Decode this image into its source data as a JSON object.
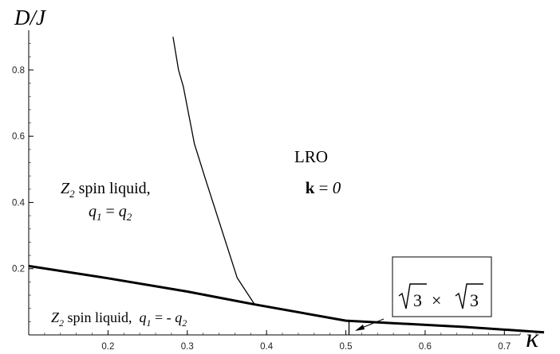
{
  "chart_data": {
    "type": "line",
    "title": "",
    "xlabel": "κ",
    "ylabel": "D/J",
    "xlim": [
      0.1,
      0.75
    ],
    "ylim": [
      0,
      0.92
    ],
    "x_ticks": [
      {
        "value": 0.2,
        "label": "0.2"
      },
      {
        "value": 0.3,
        "label": "0.3"
      },
      {
        "value": 0.4,
        "label": "0.4"
      },
      {
        "value": 0.5,
        "label": "0.5"
      },
      {
        "value": 0.6,
        "label": "0.6"
      },
      {
        "value": 0.7,
        "label": "0.7"
      }
    ],
    "y_ticks": [
      {
        "value": 0.2,
        "label": "0.2"
      },
      {
        "value": 0.4,
        "label": "0.4"
      },
      {
        "value": 0.6,
        "label": "0.6"
      },
      {
        "value": 0.8,
        "label": "0.8"
      }
    ],
    "x_minor_step": 0.02,
    "y_minor_step": 0.04,
    "grid": false,
    "series": [
      {
        "style": "thick",
        "points": [
          [
            0.1,
            0.208
          ],
          [
            0.2,
            0.171
          ],
          [
            0.3,
            0.131
          ],
          [
            0.385,
            0.092
          ],
          [
            0.5,
            0.043
          ],
          [
            0.65,
            0.024
          ],
          [
            0.75,
            0.008
          ]
        ]
      },
      {
        "style": "thin",
        "points": [
          [
            0.282,
            0.9
          ],
          [
            0.289,
            0.8
          ],
          [
            0.295,
            0.75
          ],
          [
            0.309,
            0.577
          ],
          [
            0.323,
            0.47
          ],
          [
            0.363,
            0.172
          ],
          [
            0.385,
            0.092
          ]
        ]
      },
      {
        "style": "thin",
        "points": [
          [
            0.504,
            0.0
          ],
          [
            0.504,
            0.043
          ]
        ]
      }
    ],
    "annotations": [
      {
        "id": "lro",
        "lines": [
          [
            "LRO"
          ],
          [
            "k",
            " = ",
            "0"
          ]
        ]
      },
      {
        "id": "z2-upper",
        "lines": [
          [
            "Z",
            "2",
            " spin liquid,"
          ],
          [
            "q",
            "1",
            " = ",
            "q",
            "2"
          ]
        ]
      },
      {
        "id": "z2-lower",
        "lines": [
          [
            "Z",
            "2",
            " spin liquid,  ",
            "q",
            "1",
            " = - ",
            "q",
            "2"
          ]
        ]
      },
      {
        "id": "sqrt3",
        "lines": [
          [
            "3",
            " × ",
            "3"
          ]
        ]
      }
    ]
  }
}
